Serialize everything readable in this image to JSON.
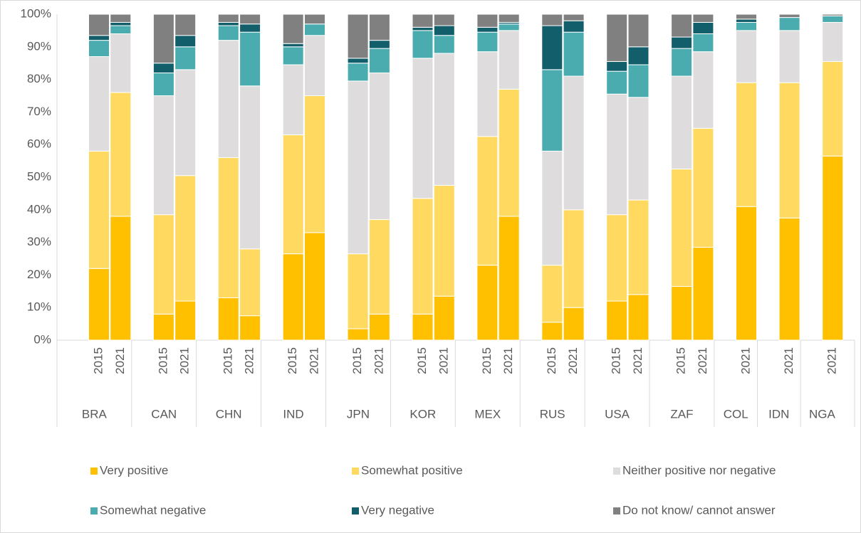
{
  "chart_data": {
    "type": "stacked_bar",
    "groups": [
      {
        "name": "BRA",
        "categories": [
          "2015",
          "2021"
        ]
      },
      {
        "name": "CAN",
        "categories": [
          "2015",
          "2021"
        ]
      },
      {
        "name": "CHN",
        "categories": [
          "2015",
          "2021"
        ]
      },
      {
        "name": "IND",
        "categories": [
          "2015",
          "2021"
        ]
      },
      {
        "name": "JPN",
        "categories": [
          "2015",
          "2021"
        ]
      },
      {
        "name": "KOR",
        "categories": [
          "2015",
          "2021"
        ]
      },
      {
        "name": "MEX",
        "categories": [
          "2015",
          "2021"
        ]
      },
      {
        "name": "RUS",
        "categories": [
          "2015",
          "2021"
        ]
      },
      {
        "name": "USA",
        "categories": [
          "2015",
          "2021"
        ]
      },
      {
        "name": "ZAF",
        "categories": [
          "2015",
          "2021"
        ]
      },
      {
        "name": "COL",
        "categories": [
          "2021"
        ]
      },
      {
        "name": "IDN",
        "categories": [
          "2021"
        ]
      },
      {
        "name": "NGA",
        "categories": [
          "2021"
        ]
      }
    ],
    "series": [
      {
        "name": "Very positive",
        "color": "#FFC000",
        "values": [
          22,
          38,
          8,
          12,
          13,
          7.5,
          26.5,
          33,
          3.5,
          8,
          8,
          13.5,
          23,
          38,
          5.5,
          10,
          12,
          14,
          16.5,
          28.5,
          41,
          37.5,
          56.5
        ]
      },
      {
        "name": "Somewhat positive",
        "color": "#FFD960",
        "values": [
          36,
          38,
          30.5,
          38.5,
          43,
          20.5,
          36.5,
          42,
          23,
          29,
          35.5,
          34,
          39.5,
          39,
          17.5,
          30,
          26.5,
          29,
          36,
          36.5,
          38,
          41.5,
          29
        ]
      },
      {
        "name": "Neither positive nor negative",
        "color": "#DEDCDD",
        "values": [
          29,
          18,
          36.5,
          32.5,
          36,
          50,
          21.5,
          18.5,
          53,
          45,
          43,
          40.5,
          26,
          18,
          35,
          41,
          37,
          31.5,
          28.5,
          23.5,
          16,
          16,
          12
        ]
      },
      {
        "name": "Somewhat negative",
        "color": "#4BACB0",
        "values": [
          5,
          2.5,
          7,
          7,
          4.5,
          16.5,
          5.5,
          3.5,
          5.5,
          7.5,
          8.5,
          5.5,
          6,
          2,
          25,
          13.5,
          7,
          10,
          8.5,
          5.5,
          2.5,
          4,
          2
        ]
      },
      {
        "name": "Very negative",
        "color": "#135E6B",
        "values": [
          1.5,
          1,
          3,
          3.5,
          1,
          2.5,
          1,
          0,
          1.5,
          2.5,
          1,
          3,
          1.5,
          0.5,
          13.5,
          3.5,
          3,
          5.5,
          3.5,
          3.5,
          1,
          0,
          0
        ]
      },
      {
        "name": "Do not know/ cannot answer",
        "color": "#808080",
        "values": [
          6.5,
          2.5,
          15,
          6.5,
          2.5,
          3,
          9,
          3,
          13.5,
          8,
          4,
          3.5,
          4,
          2.5,
          3.5,
          2,
          14.5,
          10,
          7,
          2.5,
          1.5,
          1,
          0.5
        ]
      }
    ],
    "ylim": [
      0,
      100
    ],
    "yticks": [
      {
        "value": 0,
        "label": "0%"
      },
      {
        "value": 10,
        "label": "10%"
      },
      {
        "value": 20,
        "label": "20%"
      },
      {
        "value": 30,
        "label": "30%"
      },
      {
        "value": 40,
        "label": "40%"
      },
      {
        "value": 50,
        "label": "50%"
      },
      {
        "value": 60,
        "label": "60%"
      },
      {
        "value": 70,
        "label": "70%"
      },
      {
        "value": 80,
        "label": "80%"
      },
      {
        "value": 90,
        "label": "90%"
      },
      {
        "value": 100,
        "label": "100%"
      }
    ],
    "grid": false,
    "legend": "bottom"
  }
}
